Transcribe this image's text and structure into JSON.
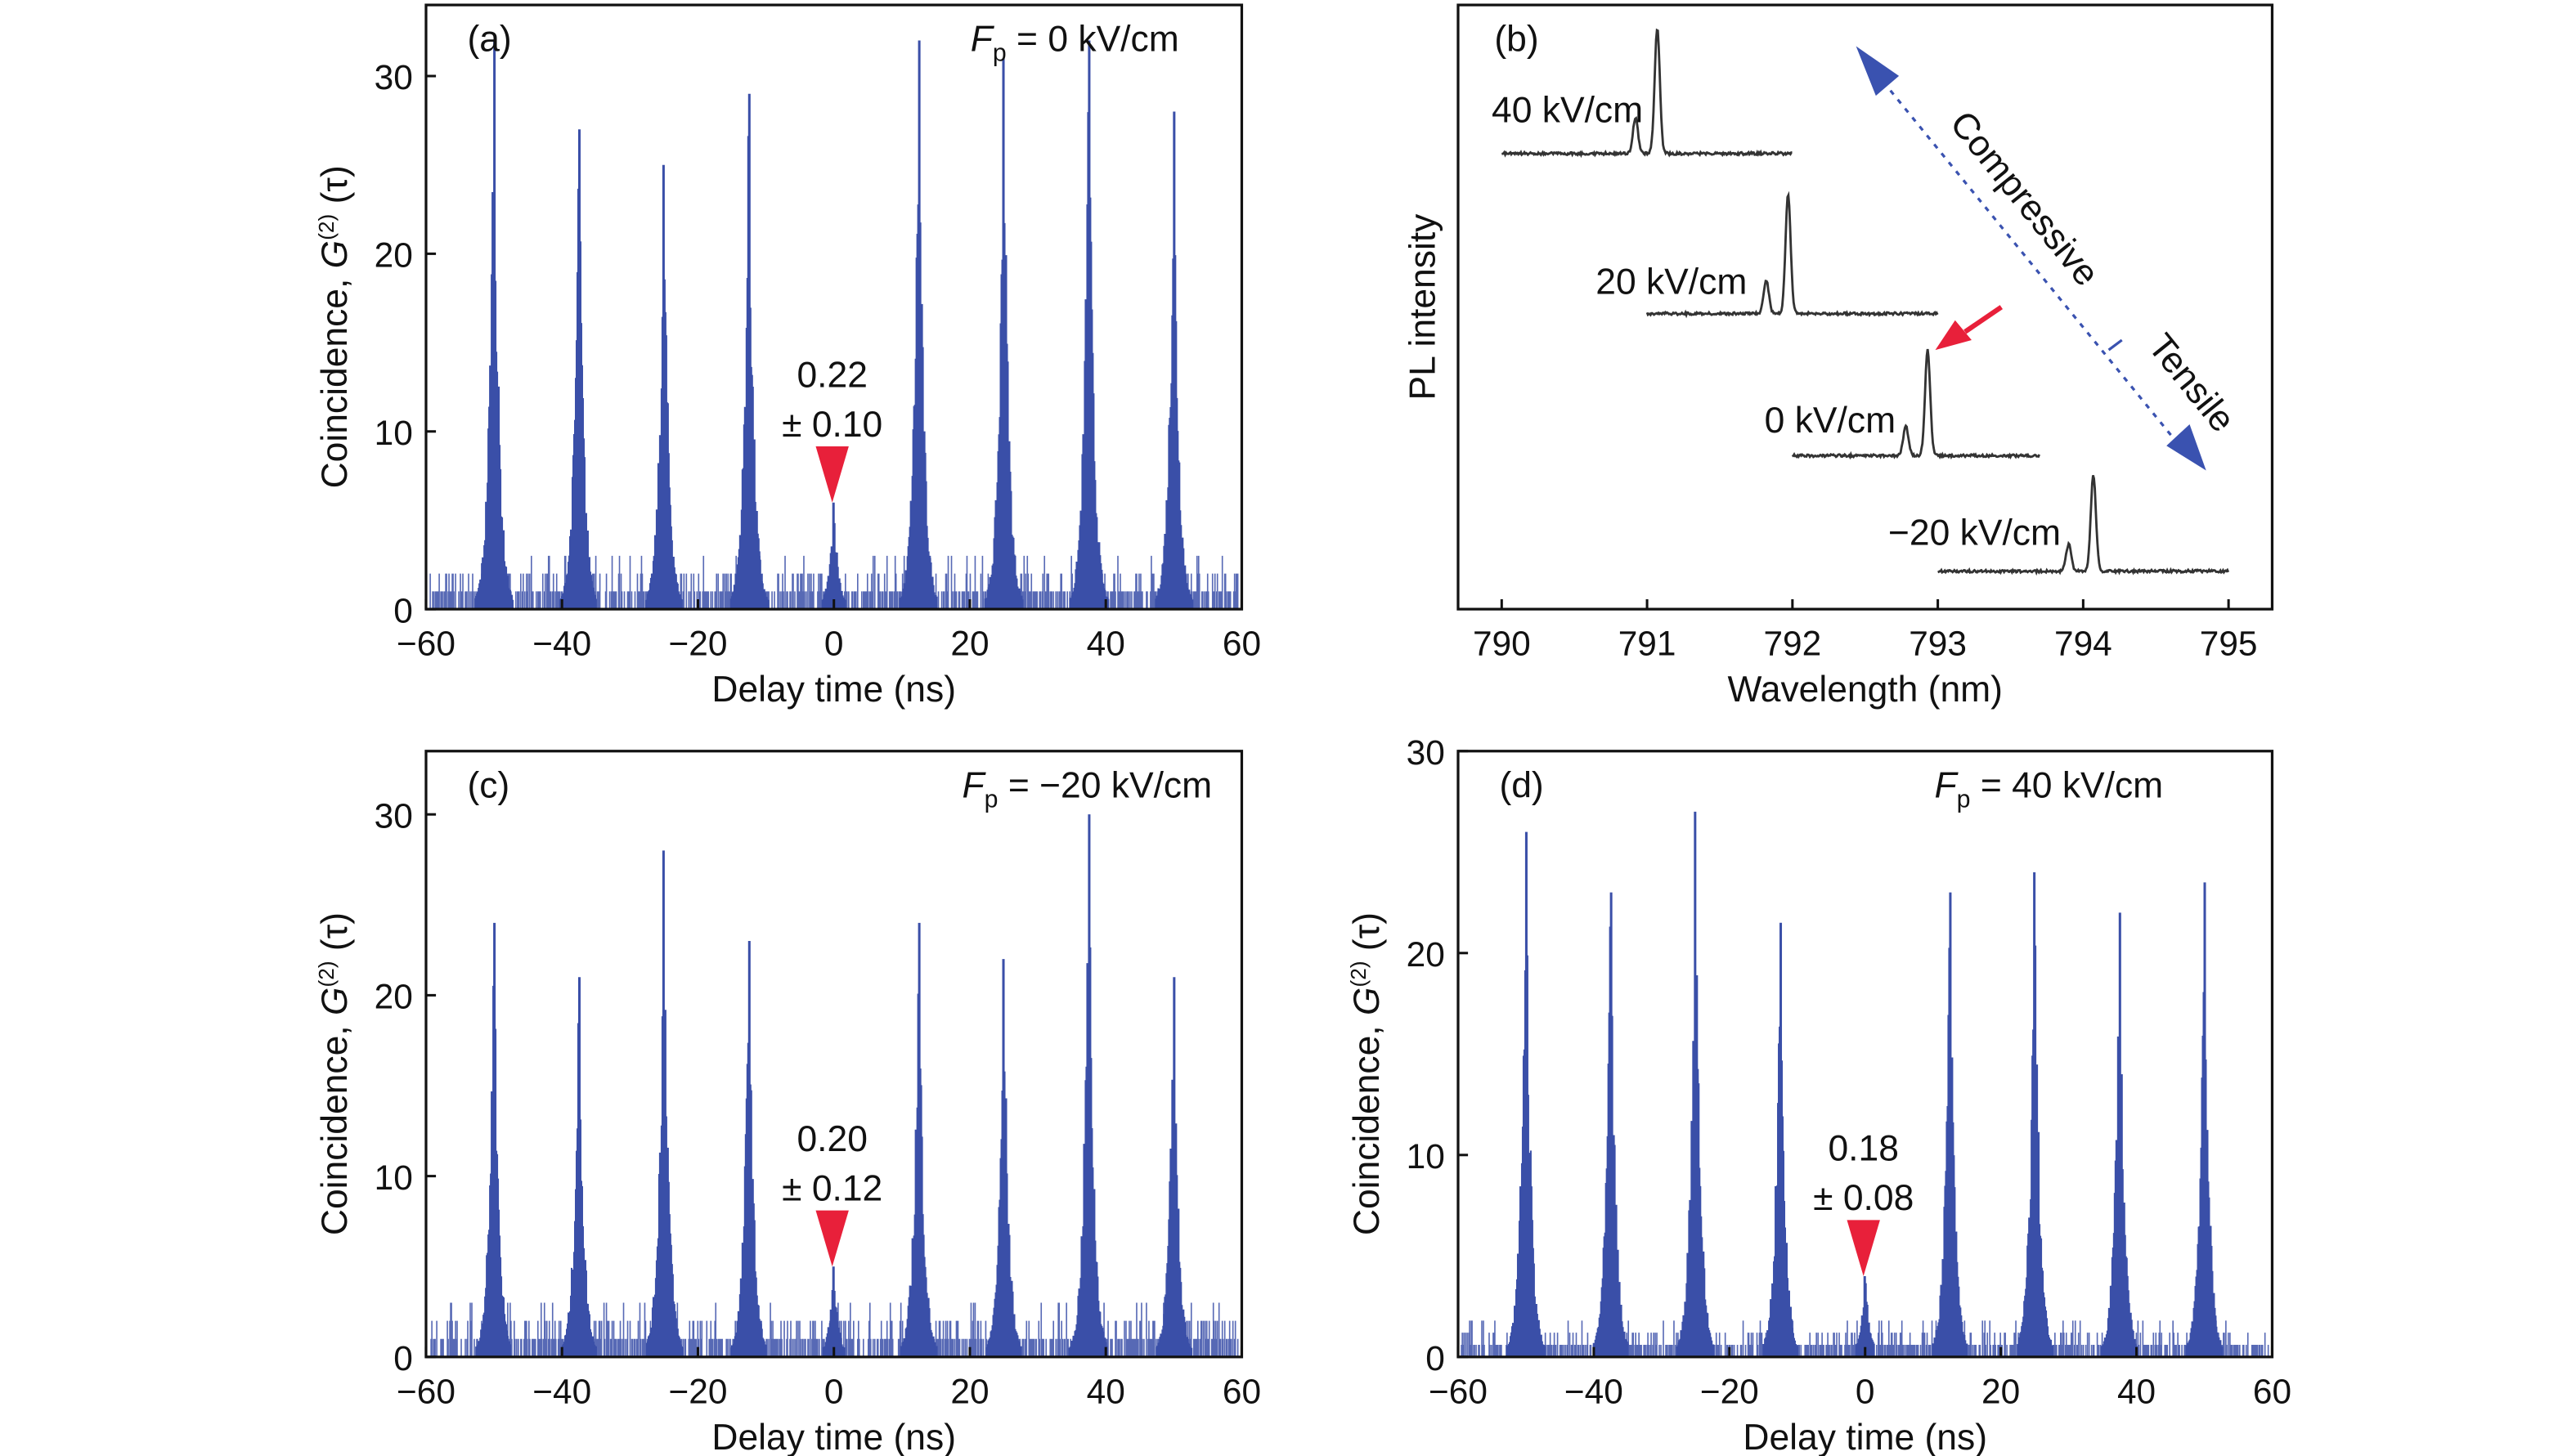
{
  "chart_data": [
    {
      "panel": "(a)",
      "type": "bar",
      "annotation_field": "F",
      "annotation_sub": "p",
      "annotation_value": "= 0 kV/cm",
      "xlabel": "Delay time (ns)",
      "ylabel_prefix": "Coincidence, ",
      "ylabel_G": "G",
      "ylabel_sup": "(2)",
      "ylabel_suffix": " (τ)",
      "xlim": [
        -60,
        60
      ],
      "ylim": [
        0,
        34
      ],
      "xticks": [
        "−60",
        "−40",
        "−20",
        "0",
        "20",
        "40",
        "60"
      ],
      "yticks": [
        "0",
        "10",
        "20",
        "30"
      ],
      "peak_times": [
        -50,
        -37.5,
        -25,
        -12.5,
        0,
        12.5,
        25,
        37.5,
        50
      ],
      "peak_heights": [
        32,
        27,
        25,
        29,
        6,
        32,
        31,
        32,
        28
      ],
      "g2_value": "0.22",
      "g2_error": "± 0.10"
    },
    {
      "panel": "(b)",
      "type": "line",
      "xlabel": "Wavelength (nm)",
      "ylabel": "PL intensity",
      "xlim": [
        789.7,
        795.3
      ],
      "xticks": [
        "790",
        "791",
        "792",
        "793",
        "794",
        "795"
      ],
      "series": [
        {
          "name": "40 kV/cm",
          "range": [
            790,
            792
          ],
          "main_peak": 791.07,
          "side_peak": 790.92
        },
        {
          "name": "20 kV/cm",
          "range": [
            791,
            793
          ],
          "main_peak": 791.97,
          "side_peak": 791.82
        },
        {
          "name": "0 kV/cm",
          "range": [
            792,
            793.7
          ],
          "main_peak": 792.93,
          "side_peak": 792.78
        },
        {
          "name": "−20 kV/cm",
          "range": [
            793,
            795
          ],
          "main_peak": 794.07,
          "side_peak": 793.9
        }
      ],
      "arrow_labels": {
        "top": "Compressive",
        "bottom": "Tensile"
      },
      "colors": {
        "arrow": "#3a52b0",
        "highlight": "#e8203a",
        "trace": "#333333"
      }
    },
    {
      "panel": "(c)",
      "type": "bar",
      "annotation_field": "F",
      "annotation_sub": "p",
      "annotation_value": "= −20 kV/cm",
      "xlabel": "Delay time (ns)",
      "ylabel_prefix": "Coincidence, ",
      "ylabel_G": "G",
      "ylabel_sup": "(2)",
      "ylabel_suffix": " (τ)",
      "xlim": [
        -60,
        60
      ],
      "ylim": [
        0,
        33.5
      ],
      "xticks": [
        "−60",
        "−40",
        "−20",
        "0",
        "20",
        "40",
        "60"
      ],
      "yticks": [
        "0",
        "10",
        "20",
        "30"
      ],
      "peak_times": [
        -50,
        -37.5,
        -25,
        -12.5,
        0,
        12.5,
        25,
        37.5,
        50
      ],
      "peak_heights": [
        24,
        21,
        28,
        23,
        5,
        24,
        22,
        30,
        21
      ],
      "g2_value": "0.20",
      "g2_error": "± 0.12"
    },
    {
      "panel": "(d)",
      "type": "bar",
      "annotation_field": "F",
      "annotation_sub": "p",
      "annotation_value": "= 40 kV/cm",
      "xlabel": "Delay time (ns)",
      "ylabel_prefix": "Coincidence, ",
      "ylabel_G": "G",
      "ylabel_sup": "(2)",
      "ylabel_suffix": " (τ)",
      "xlim": [
        -60,
        60
      ],
      "ylim": [
        0,
        30
      ],
      "xticks": [
        "−60",
        "−40",
        "−20",
        "0",
        "20",
        "40",
        "60"
      ],
      "yticks": [
        "0",
        "10",
        "20",
        "30"
      ],
      "peak_times": [
        -50,
        -37.5,
        -25,
        -12.5,
        0,
        12.5,
        25,
        37.5,
        50
      ],
      "peak_heights": [
        26,
        23,
        27,
        21.5,
        4,
        23,
        24,
        22,
        23.5
      ],
      "g2_value": "0.18",
      "g2_error": "± 0.08"
    }
  ],
  "colors": {
    "bars": "#3a4fa8",
    "marker": "#e8203a"
  }
}
